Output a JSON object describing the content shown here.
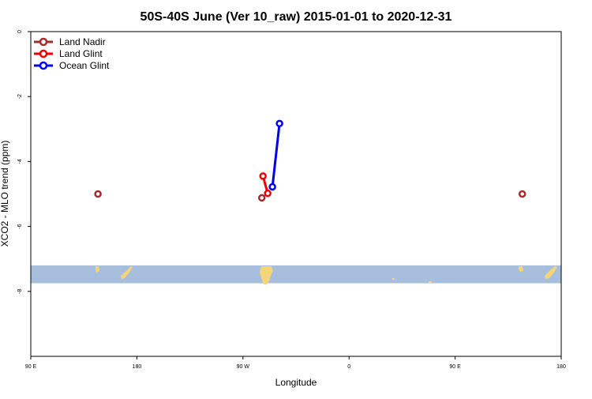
{
  "chart_data": {
    "type": "line",
    "title": "50S-40S June (Ver 10_raw)   2015-01-01 to 2020-12-31",
    "xlabel": "Longitude",
    "ylabel": "XCO2 - MLO trend (ppm)",
    "x_ticks": [
      {
        "value": 90,
        "label": "90 E"
      },
      {
        "value": 180,
        "label": "180"
      },
      {
        "value": 270,
        "label": "90 W"
      },
      {
        "value": 360,
        "label": "0"
      },
      {
        "value": 450,
        "label": "90 E"
      },
      {
        "value": 540,
        "label": "180"
      }
    ],
    "y_ticks": [
      {
        "value": 0,
        "label": "0"
      },
      {
        "value": -2,
        "label": "-2"
      },
      {
        "value": -4,
        "label": "-4"
      },
      {
        "value": -6,
        "label": "-6"
      },
      {
        "value": -8,
        "label": "-8"
      }
    ],
    "xlim": [
      90,
      540
    ],
    "ylim": [
      -10,
      0
    ],
    "legend_position": "top-left",
    "map_strip": {
      "y_range": [
        -7.2,
        -7.75
      ],
      "ocean_color": "#a8bedd",
      "land_color": "#f5d47a"
    },
    "series": [
      {
        "name": "Land Nadir",
        "color": "#a52a2a",
        "segments": [
          [
            {
              "x": 147,
              "y": -5.0
            }
          ],
          [
            {
              "x": 286,
              "y": -5.12
            }
          ],
          [
            {
              "x": 507,
              "y": -5.0
            }
          ]
        ]
      },
      {
        "name": "Land Glint",
        "color": "#ee0000",
        "segments": [
          [
            {
              "x": 287,
              "y": -4.45
            },
            {
              "x": 291,
              "y": -4.98
            }
          ]
        ]
      },
      {
        "name": "Ocean Glint",
        "color": "#0000ee",
        "segments": [
          [
            {
              "x": 295,
              "y": -4.78
            },
            {
              "x": 301,
              "y": -2.83
            }
          ]
        ]
      }
    ]
  }
}
